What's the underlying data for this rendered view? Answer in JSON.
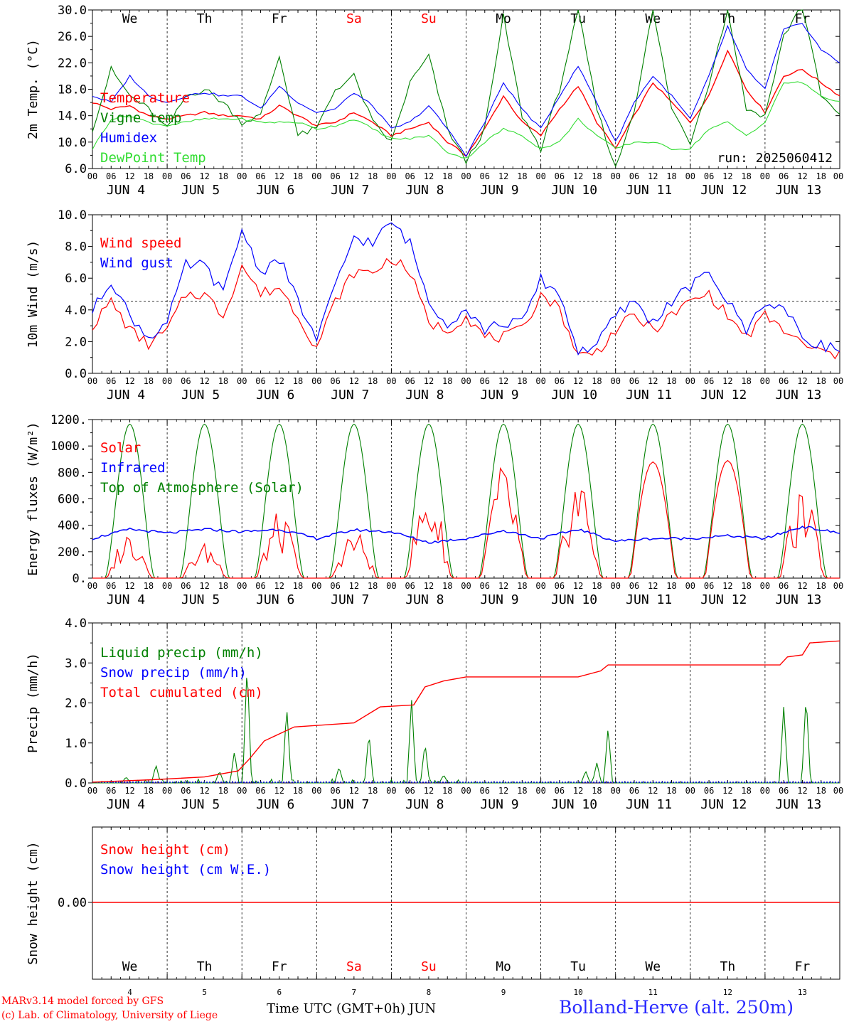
{
  "colors": {
    "red": "#ff0000",
    "green": "#008000",
    "blue": "#0000ff",
    "lightgreen": "#33dd33",
    "axis": "#000000",
    "site": "#2a2aff"
  },
  "x_axis": {
    "hour_ticks": [
      "00",
      "06",
      "12",
      "18"
    ],
    "end_tick": "00",
    "dates": [
      "JUN 4",
      "JUN 5",
      "JUN 6",
      "JUN 7",
      "JUN 8",
      "JUN 9",
      "JUN 10",
      "JUN 11",
      "JUN 12",
      "JUN 13"
    ],
    "weekdays": [
      {
        "label": "We",
        "weekend": false
      },
      {
        "label": "Th",
        "weekend": false
      },
      {
        "label": "Fr",
        "weekend": false
      },
      {
        "label": "Sa",
        "weekend": true
      },
      {
        "label": "Su",
        "weekend": true
      },
      {
        "label": "Mo",
        "weekend": false
      },
      {
        "label": "Tu",
        "weekend": false
      },
      {
        "label": "We",
        "weekend": false
      },
      {
        "label": "Th",
        "weekend": false
      },
      {
        "label": "Fr",
        "weekend": false
      }
    ],
    "day_numbers": [
      "4",
      "5",
      "6",
      "7",
      "8",
      "9",
      "10",
      "11",
      "12",
      "13"
    ],
    "time_label": "Time UTC (GMT+0h)",
    "month": "JUN"
  },
  "chart_data": [
    {
      "type": "line",
      "id": "temp",
      "ylabel": "2m Temp. (°C)",
      "ylim": [
        6,
        30
      ],
      "yticks": [
        "6.0",
        "10.0",
        "14.0",
        "18.0",
        "22.0",
        "26.0",
        "30.0"
      ],
      "run_label": "run: 2025060412",
      "x_days": [
        0,
        0.25,
        0.5,
        0.75,
        1,
        1.25,
        1.5,
        1.75,
        2,
        2.25,
        2.5,
        2.75,
        3,
        3.25,
        3.5,
        3.75,
        4,
        4.25,
        4.5,
        4.75,
        5,
        5.25,
        5.5,
        5.75,
        6,
        6.25,
        6.5,
        6.75,
        7,
        7.25,
        7.5,
        7.75,
        8,
        8.25,
        8.5,
        8.75,
        9,
        9.25,
        9.5,
        9.75,
        10
      ],
      "series": [
        {
          "name": "Temperature",
          "color": "red",
          "values": [
            16,
            15,
            15.5,
            14,
            13.5,
            14,
            14.5,
            14,
            14,
            13.5,
            15.5,
            14,
            12.5,
            13,
            14.5,
            13,
            11,
            12,
            13,
            10,
            8,
            12,
            17,
            13,
            11,
            15,
            18.5,
            13,
            9,
            14,
            19,
            16,
            13,
            17,
            24,
            18,
            14.5,
            20,
            21,
            19,
            17
          ]
        },
        {
          "name": "Vigne temp",
          "color": "green",
          "values": [
            12,
            21,
            17,
            15,
            12,
            17,
            18,
            16,
            13,
            14,
            23,
            11,
            12,
            18,
            20,
            13,
            10,
            19,
            23,
            12,
            7,
            12,
            29,
            14,
            9,
            18,
            30,
            15,
            6,
            15,
            30,
            15,
            10,
            19,
            30,
            15,
            14,
            26,
            31,
            17,
            14
          ]
        },
        {
          "name": "Humidex",
          "color": "blue",
          "values": [
            17,
            16,
            20,
            17,
            16,
            17,
            17.5,
            17,
            17,
            15,
            18.5,
            16,
            14.5,
            15,
            17.5,
            15.5,
            12,
            13,
            15.5,
            12,
            8,
            13,
            19,
            15,
            12,
            17,
            21.5,
            16,
            10,
            16,
            20,
            17,
            13.5,
            20,
            27.5,
            21,
            18,
            27,
            28,
            24,
            22
          ]
        },
        {
          "name": "DewPoint Temp",
          "color": "lightgreen",
          "values": [
            9,
            13.5,
            14,
            13,
            12.5,
            13,
            13.5,
            13.5,
            13.5,
            13,
            13,
            13,
            12,
            12.5,
            13.5,
            12,
            10.5,
            10.5,
            11,
            8.5,
            7.5,
            10,
            12,
            11,
            9,
            10,
            13.5,
            11,
            9,
            10,
            10,
            9,
            9,
            12,
            13,
            11,
            13,
            19,
            19,
            17,
            16
          ]
        }
      ]
    },
    {
      "type": "line",
      "id": "wind",
      "ylabel": "10m Wind (m/s)",
      "ylim": [
        0,
        11
      ],
      "yticks": [
        "0.0",
        "2.0",
        "4.0",
        "6.0",
        "8.0",
        "10.0"
      ],
      "ref_line": 5,
      "x_days": [
        0,
        0.25,
        0.5,
        0.75,
        1,
        1.25,
        1.5,
        1.75,
        2,
        2.25,
        2.5,
        2.75,
        3,
        3.25,
        3.5,
        3.75,
        4,
        4.25,
        4.5,
        4.75,
        5,
        5.25,
        5.5,
        5.75,
        6,
        6.25,
        6.5,
        6.75,
        7,
        7.25,
        7.5,
        7.75,
        8,
        8.25,
        8.5,
        8.75,
        9,
        9.25,
        9.5,
        9.75,
        10
      ],
      "series": [
        {
          "name": "Wind speed",
          "color": "red",
          "values": [
            3.3,
            5,
            3,
            2,
            3,
            5.5,
            5.5,
            4,
            7.5,
            5.5,
            6,
            4,
            1.8,
            5,
            7,
            7,
            8,
            7,
            3.5,
            3,
            4,
            2.5,
            2.5,
            3,
            5.5,
            4.5,
            1.2,
            1.5,
            3,
            4,
            3,
            4,
            5,
            5.5,
            4,
            2.5,
            4,
            3,
            2,
            1.5,
            1.2
          ]
        },
        {
          "name": "Wind gust",
          "color": "blue",
          "values": [
            4.3,
            6.5,
            4,
            2.5,
            3.5,
            7.5,
            7.5,
            5.5,
            10,
            7,
            8,
            5,
            2.3,
            6,
            9.5,
            9,
            10.5,
            9,
            5,
            3.5,
            4.5,
            3,
            3.5,
            3.5,
            6.5,
            5.5,
            1.5,
            2,
            4,
            5,
            3.5,
            5,
            6,
            7,
            5,
            3,
            5,
            4.5,
            2.5,
            2,
            1.6
          ]
        }
      ]
    },
    {
      "type": "line",
      "id": "energy",
      "ylabel": "Energy fluxes (W/m²)",
      "ylim": [
        0,
        1200
      ],
      "yticks": [
        "0.",
        "200.",
        "400.",
        "600.",
        "800.",
        "1000.",
        "1200."
      ],
      "solar_peaks": [
        380,
        270,
        500,
        380,
        700,
        880,
        820,
        880,
        890,
        660
      ],
      "toa_peak": 1165,
      "infrared_values": [
        300,
        370,
        340,
        370,
        350,
        370,
        300,
        365,
        350,
        270,
        300,
        360,
        300,
        370,
        280,
        300,
        300,
        320,
        300,
        390,
        340
      ],
      "series": [
        {
          "name": "Solar",
          "color": "red"
        },
        {
          "name": "Infrared",
          "color": "blue"
        },
        {
          "name": "Top of Atmosphere (Solar)",
          "color": "green"
        }
      ]
    },
    {
      "type": "line",
      "id": "precip",
      "ylabel": "Precip (mm/h)",
      "ylim": [
        0,
        4
      ],
      "yticks": [
        "0.0",
        "1.0",
        "2.0",
        "3.0",
        "4.0"
      ],
      "liquid_spikes": [
        [
          0.45,
          0.15
        ],
        [
          0.85,
          0.45
        ],
        [
          1.7,
          0.3
        ],
        [
          1.9,
          0.8
        ],
        [
          2.07,
          3.0
        ],
        [
          2.6,
          1.9
        ],
        [
          3.3,
          0.4
        ],
        [
          3.7,
          1.25
        ],
        [
          4.27,
          2.1
        ],
        [
          4.45,
          1.0
        ],
        [
          4.7,
          0.2
        ],
        [
          6.6,
          0.3
        ],
        [
          6.75,
          0.5
        ],
        [
          6.9,
          1.4
        ],
        [
          9.25,
          1.9
        ],
        [
          9.55,
          2.2
        ]
      ],
      "cumulative": {
        "x": [
          0,
          0.8,
          1.5,
          1.95,
          2.1,
          2.3,
          2.7,
          3.5,
          3.85,
          4.3,
          4.45,
          4.7,
          5,
          5.5,
          6.5,
          6.8,
          6.9,
          7.5,
          8,
          9.2,
          9.3,
          9.5,
          9.6,
          10
        ],
        "y": [
          0.02,
          0.08,
          0.15,
          0.3,
          0.6,
          1.05,
          1.4,
          1.5,
          1.9,
          1.95,
          2.4,
          2.55,
          2.65,
          2.65,
          2.65,
          2.8,
          2.95,
          2.95,
          2.95,
          2.95,
          3.15,
          3.2,
          3.5,
          3.55
        ]
      },
      "series": [
        {
          "name": "Liquid precip (mm/h)",
          "color": "green"
        },
        {
          "name": "Snow precip (mm/h)",
          "color": "blue"
        },
        {
          "name": "Total cumulated (cm)",
          "color": "red"
        }
      ]
    },
    {
      "type": "line",
      "id": "snow",
      "ylabel": "Snow height (cm)",
      "yticks": [
        "0.00"
      ],
      "values": [
        0,
        0
      ],
      "series": [
        {
          "name": "Snow height (cm)",
          "color": "red"
        },
        {
          "name": "Snow height (cm W.E.)",
          "color": "blue"
        }
      ]
    }
  ],
  "footer": {
    "model": "MARv3.14 model forced by GFS",
    "credit": "(c) Lab. of Climatology, University of Liege",
    "site": "Bolland-Herve (alt. 250m)"
  }
}
